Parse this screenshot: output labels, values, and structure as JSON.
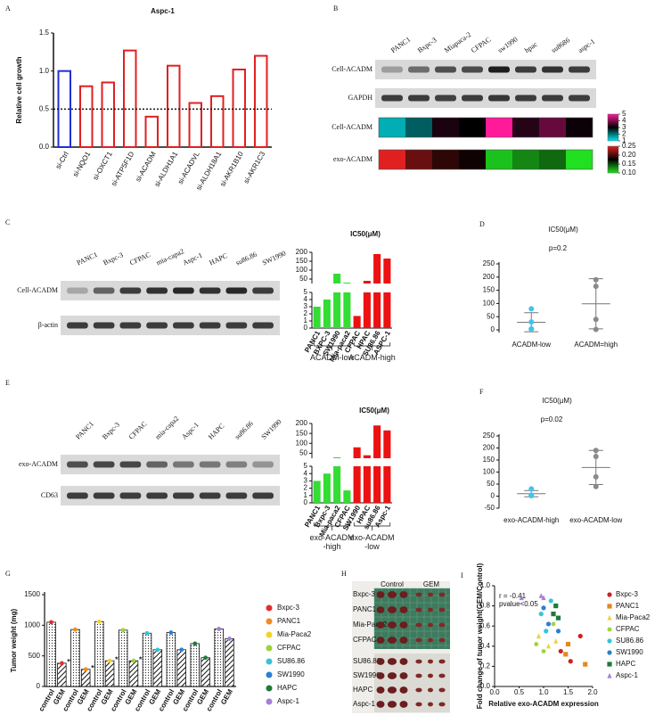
{
  "panel_labels": [
    "A",
    "B",
    "C",
    "D",
    "E",
    "F",
    "G",
    "H",
    "I"
  ],
  "blots": [
    {
      "columns": [
        "PANC1",
        "Bxpc-3",
        "Miapaca-2",
        "CFPAC",
        "sw1990",
        "hpac",
        "su8686",
        "aspc-1"
      ],
      "rows": [
        "Cell-ACADM",
        "GAPDH"
      ]
    },
    {
      "columns": [
        "PANC1",
        "Bxpc-3",
        "CFPAC",
        "mia-capa2",
        "Aspc-1",
        "HAPC",
        "su86.86",
        "SW1990"
      ],
      "rows": [
        "Cell-ACADM",
        "β-actin"
      ]
    },
    {
      "columns": [
        "PANC1",
        "Bxpc-3",
        "CFPAC",
        "mia-capa2",
        "Aspc-1",
        "HAPC",
        "su86.86",
        "SW1990"
      ],
      "rows": [
        "exo-ACADM",
        "CD63"
      ]
    }
  ],
  "photo": {
    "columns": [
      "Control",
      "GEM"
    ],
    "rows": [
      "Bxpc-3",
      "PANC1",
      "Mia-Paca2",
      "CFPAC",
      "SU86.86",
      "SW1990",
      "HAPC",
      "Aspc-1"
    ]
  },
  "chart_data": [
    {
      "type": "bar",
      "title": "Aspc-1",
      "y_label": "Relative cell growth",
      "categories": [
        "si-Ctrl",
        "si-NQO1",
        "si-OXCT1",
        "si-ATP5F1D",
        "si-ACADM",
        "si-ALDH1A1",
        "si-ACADVL",
        "si-ALDH18A1",
        "si-AKR1B10",
        "si-AKR1C3"
      ],
      "values": [
        1.0,
        0.8,
        0.85,
        1.27,
        0.4,
        1.07,
        0.58,
        0.67,
        1.02,
        1.2
      ],
      "colors": [
        "#1f2fd6",
        "#e02020",
        "#e02020",
        "#e02020",
        "#e02020",
        "#e02020",
        "#e02020",
        "#e02020",
        "#e02020",
        "#e02020"
      ],
      "ylim": [
        0,
        1.5
      ],
      "yticks": [
        {
          "value": 0,
          "label": "0.0"
        },
        0.5,
        {
          "value": 1,
          "label": "1.0"
        },
        1.5
      ],
      "ref_line": 0.5
    },
    {
      "type": "heatmap",
      "rows": [
        {
          "name": "Cell-ACADM",
          "values": [
            1.5,
            2.2,
            3.2,
            3.0,
            5,
            3.3,
            3.8,
            3.1
          ],
          "colorscale": [
            "#00e8f0",
            "#000000",
            "#ff1a9a"
          ],
          "zlim": [
            1,
            5
          ],
          "zticks": [
            1,
            2,
            3,
            4,
            5
          ]
        },
        {
          "name": "exo-ACADM",
          "values": [
            0.25,
            0.21,
            0.19,
            0.18,
            0.11,
            0.13,
            0.14,
            0.1
          ],
          "colorscale": [
            "#20e020",
            "#000000",
            "#e02020"
          ],
          "zlim": [
            0.1,
            0.25
          ],
          "zticks": [
            {
              "value": 0.1,
              "label": "0.10"
            },
            0.15,
            {
              "value": 0.2,
              "label": "0.20"
            },
            0.25
          ]
        }
      ]
    },
    {
      "type": "bar",
      "title": "IC50(μM)",
      "categories": [
        "PANC1",
        "BXPC-3",
        "SW1990",
        "Mia-paca2",
        "CFPAC",
        "HPAC",
        "SU86.86",
        "ASPC-1"
      ],
      "series": [
        {
          "name": "ACADM-low",
          "color": "#33dd33",
          "values": [
            3,
            4,
            80,
            30,
            null,
            null,
            null,
            null
          ]
        },
        {
          "name": "ACADM-high",
          "color": "#ee1111",
          "values": [
            null,
            null,
            null,
            null,
            1.7,
            40,
            190,
            165
          ]
        }
      ],
      "ylim": [
        0,
        200
      ],
      "axis_break": [
        5,
        25
      ],
      "yticks": [
        0,
        1,
        2,
        3,
        4,
        5,
        50,
        100,
        150,
        200
      ]
    },
    {
      "type": "dotplot",
      "title": "IC50(μM)",
      "subtitle": "p=0.2",
      "subtitle_color": "#333333",
      "categories": [
        "ACADM-low",
        "ACADM=high"
      ],
      "colors": [
        "#45c2ea",
        "#8a8a8a"
      ],
      "values": [
        [
          80,
          30,
          4,
          3
        ],
        [
          190,
          165,
          40,
          2
        ]
      ],
      "means": [
        29,
        99
      ],
      "errors": [
        36,
        95
      ],
      "ylim": [
        -10,
        250
      ],
      "yticks": [
        0,
        50,
        100,
        150,
        200,
        250
      ]
    },
    {
      "type": "bar",
      "title": "IC50(μM)",
      "categories": [
        "PANC1",
        "Bxpc-3",
        "Mia-paca2",
        "CFPAC",
        "SW1990",
        "HPAC",
        "su86.86",
        "Aspc-1"
      ],
      "series": [
        {
          "name": "exo-ACADM\n-high",
          "color": "#33dd33",
          "values": [
            3,
            4,
            30,
            1.7,
            null,
            null,
            null,
            null
          ]
        },
        {
          "name": "exo-ACADM\n-low",
          "color": "#ee1111",
          "values": [
            null,
            null,
            null,
            null,
            80,
            40,
            190,
            165
          ]
        }
      ],
      "ylim": [
        0,
        200
      ],
      "axis_break": [
        5,
        25
      ],
      "yticks": [
        0,
        1,
        2,
        3,
        4,
        5,
        50,
        100,
        150,
        200
      ]
    },
    {
      "type": "dotplot",
      "title": "IC50(μM)",
      "subtitle": "p=0.02",
      "subtitle_color": "#d02020",
      "categories": [
        "exo-ACADM-high",
        "exo-ACADM-low"
      ],
      "colors": [
        "#45c2ea",
        "#8a8a8a"
      ],
      "values": [
        [
          30,
          4,
          3,
          2
        ],
        [
          190,
          165,
          80,
          40
        ]
      ],
      "means": [
        10,
        119
      ],
      "errors": [
        13,
        71
      ],
      "ylim": [
        -50,
        250
      ],
      "yticks": [
        -50,
        0,
        50,
        100,
        150,
        200,
        250
      ]
    },
    {
      "type": "grouped_bar",
      "y_label": "Tumor weight (mg)",
      "categories": [
        "control",
        "GEM"
      ],
      "series": [
        {
          "name": "Bxpc-3",
          "color": "#e03030",
          "values": [
            1050,
            380
          ],
          "annotations": [
            null,
            "****"
          ]
        },
        {
          "name": "PANC1",
          "color": "#f08a20",
          "values": [
            930,
            280
          ],
          "annotations": [
            null,
            "****"
          ]
        },
        {
          "name": "Mia-Paca2",
          "color": "#f2d22a",
          "values": [
            1060,
            420
          ],
          "annotations": [
            null,
            "****"
          ]
        },
        {
          "name": "CFPAC",
          "color": "#9bd23a",
          "values": [
            920,
            420
          ],
          "annotations": [
            null,
            "**"
          ]
        },
        {
          "name": "SU86.86",
          "color": "#35c4d8",
          "values": [
            870,
            600
          ]
        },
        {
          "name": "SW1990",
          "color": "#2a7fd0",
          "values": [
            880,
            600
          ]
        },
        {
          "name": "HAPC",
          "color": "#1e7a3a",
          "values": [
            700,
            470
          ]
        },
        {
          "name": "Aspc-1",
          "color": "#a57fd8",
          "values": [
            940,
            780
          ]
        }
      ],
      "ylim": [
        0,
        1500
      ],
      "yticks": [
        0,
        500,
        1000,
        1500
      ]
    },
    {
      "type": "scatter",
      "x_label": "Relative exo-ACADM expression",
      "y_label": "Fold change of tumor weight(GEM/Control)",
      "annotations": [
        "r = -0.41",
        "pvalue<0.05"
      ],
      "series": [
        {
          "name": "Bxpc-3",
          "color": "#d02020",
          "marker": "circle",
          "x": [
            1.35,
            1.75,
            1.55
          ],
          "values": [
            0.35,
            0.5,
            0.25
          ]
        },
        {
          "name": "PANC1",
          "color": "#e08a20",
          "marker": "square",
          "x": [
            1.45,
            1.85,
            1.5
          ],
          "values": [
            0.32,
            0.22,
            0.42
          ]
        },
        {
          "name": "Mia-Paca2",
          "color": "#f0d040",
          "marker": "triangle",
          "x": [
            1.1,
            0.9,
            1.25
          ],
          "values": [
            0.4,
            0.5,
            0.45
          ]
        },
        {
          "name": "CFPAC",
          "color": "#9bd23a",
          "marker": "star",
          "x": [
            0.85,
            1.0,
            1.2
          ],
          "values": [
            0.42,
            0.35,
            0.62
          ]
        },
        {
          "name": "SU86.86",
          "color": "#35c4d8",
          "marker": "circle",
          "x": [
            0.95,
            1.15,
            1.05
          ],
          "values": [
            0.72,
            0.85,
            0.55
          ]
        },
        {
          "name": "SW1990",
          "color": "#2a7fd0",
          "marker": "circle",
          "x": [
            1.0,
            1.1,
            1.3
          ],
          "values": [
            0.78,
            0.62,
            0.55
          ]
        },
        {
          "name": "HAPC",
          "color": "#1e7a3a",
          "marker": "square",
          "x": [
            1.25,
            1.3,
            1.2
          ],
          "values": [
            0.8,
            0.68,
            0.72
          ]
        },
        {
          "name": "Aspc-1",
          "color": "#a57fd8",
          "marker": "triangle",
          "x": [
            0.55,
            1.0,
            0.95
          ],
          "values": [
            0.88,
            0.88,
            0.9
          ]
        }
      ],
      "xlim": [
        0,
        2
      ],
      "xticks": [
        {
          "value": 0,
          "label": "0.0"
        },
        0.5,
        {
          "value": 1,
          "label": "1.0"
        },
        1.5,
        {
          "value": 2,
          "label": "2.0"
        }
      ],
      "ylim": [
        0,
        1
      ],
      "yticks": [
        {
          "value": 0,
          "label": "0.0"
        },
        0.2,
        0.4,
        0.6,
        0.8,
        {
          "value": 1,
          "label": "1.0"
        }
      ]
    }
  ]
}
